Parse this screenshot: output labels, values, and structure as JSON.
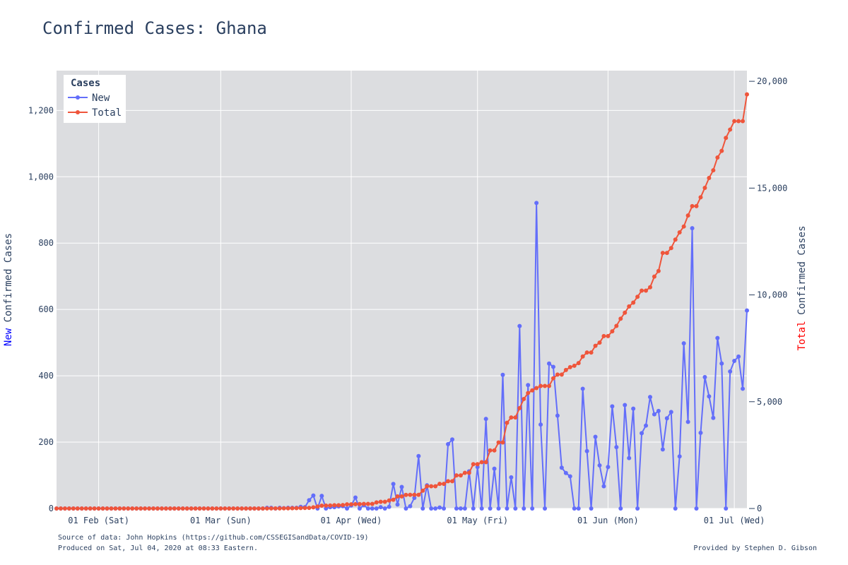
{
  "chart_data": {
    "type": "line",
    "title": "Confirmed Cases: Ghana",
    "x_axis": {
      "range": [
        "2020-01-22",
        "2020-07-04"
      ],
      "ticks": [
        {
          "date": "2020-02-01",
          "label": "01 Feb (Sat)"
        },
        {
          "date": "2020-03-01",
          "label": "01 Mar (Sun)"
        },
        {
          "date": "2020-04-01",
          "label": "01 Apr (Wed)"
        },
        {
          "date": "2020-05-01",
          "label": "01 May (Fri)"
        },
        {
          "date": "2020-06-01",
          "label": "01 Jun (Mon)"
        },
        {
          "date": "2020-07-01",
          "label": "01 Jul (Wed)"
        }
      ]
    },
    "y_left": {
      "label_colored": "New",
      "label_rest": " Confirmed Cases",
      "label_color": "#0000ff",
      "range": [
        0,
        1320
      ],
      "ticks": [
        {
          "value": 0,
          "label": "0"
        },
        {
          "value": 200,
          "label": "200"
        },
        {
          "value": 400,
          "label": "400"
        },
        {
          "value": 600,
          "label": "600"
        },
        {
          "value": 800,
          "label": "800"
        },
        {
          "value": 1000,
          "label": "1,000"
        },
        {
          "value": 1200,
          "label": "1,200"
        }
      ]
    },
    "y_right": {
      "label_colored": "Total",
      "label_rest": " Confirmed Cases",
      "label_color": "#ff0000",
      "range": [
        0,
        20500
      ],
      "ticks": [
        {
          "value": 0,
          "label": "0"
        },
        {
          "value": 5000,
          "label": "5,000"
        },
        {
          "value": 10000,
          "label": "10,000"
        },
        {
          "value": 15000,
          "label": "15,000"
        },
        {
          "value": 20000,
          "label": "20,000"
        }
      ]
    },
    "grid": true,
    "legend": {
      "title": "Cases",
      "placement": "top-left",
      "entries": [
        {
          "name": "New",
          "color": "#636efa"
        },
        {
          "name": "Total",
          "color": "#ef553b"
        }
      ]
    },
    "series": [
      {
        "name": "New",
        "axis": "left",
        "color": "#636efa",
        "points": [
          [
            "2020-03-12",
            2
          ],
          [
            "2020-03-13",
            2
          ],
          [
            "2020-03-14",
            0
          ],
          [
            "2020-03-15",
            2
          ],
          [
            "2020-03-16",
            1
          ],
          [
            "2020-03-17",
            2
          ],
          [
            "2020-03-18",
            2
          ],
          [
            "2020-03-19",
            2
          ],
          [
            "2020-03-20",
            5
          ],
          [
            "2020-03-21",
            4
          ],
          [
            "2020-03-22",
            25
          ],
          [
            "2020-03-23",
            39
          ],
          [
            "2020-03-24",
            0
          ],
          [
            "2020-03-25",
            38
          ],
          [
            "2020-03-26",
            0
          ],
          [
            "2020-03-27",
            4
          ],
          [
            "2020-03-28",
            4
          ],
          [
            "2020-03-29",
            6
          ],
          [
            "2020-03-30",
            7
          ],
          [
            "2020-03-31",
            0
          ],
          [
            "2020-04-01",
            9
          ],
          [
            "2020-04-02",
            33
          ],
          [
            "2020-04-03",
            0
          ],
          [
            "2020-04-04",
            10
          ],
          [
            "2020-04-05",
            0
          ],
          [
            "2020-04-06",
            0
          ],
          [
            "2020-04-07",
            0
          ],
          [
            "2020-04-08",
            4
          ],
          [
            "2020-04-09",
            0
          ],
          [
            "2020-04-10",
            5
          ],
          [
            "2020-04-11",
            74
          ],
          [
            "2020-04-12",
            12
          ],
          [
            "2020-04-13",
            65
          ],
          [
            "2020-04-14",
            0
          ],
          [
            "2020-04-15",
            7
          ],
          [
            "2020-04-16",
            32
          ],
          [
            "2020-04-17",
            158
          ],
          [
            "2020-04-18",
            0
          ],
          [
            "2020-04-19",
            70
          ],
          [
            "2020-04-20",
            0
          ],
          [
            "2020-04-21",
            0
          ],
          [
            "2020-04-22",
            3
          ],
          [
            "2020-04-23",
            0
          ],
          [
            "2020-04-24",
            194
          ],
          [
            "2020-04-25",
            208
          ],
          [
            "2020-04-26",
            0
          ],
          [
            "2020-04-27",
            0
          ],
          [
            "2020-04-28",
            0
          ],
          [
            "2020-04-29",
            112
          ],
          [
            "2020-04-30",
            0
          ],
          [
            "2020-05-01",
            125
          ],
          [
            "2020-05-02",
            0
          ],
          [
            "2020-05-03",
            270
          ],
          [
            "2020-05-04",
            0
          ],
          [
            "2020-05-05",
            120
          ],
          [
            "2020-05-06",
            0
          ],
          [
            "2020-05-07",
            403
          ],
          [
            "2020-05-08",
            0
          ],
          [
            "2020-05-09",
            94
          ],
          [
            "2020-05-10",
            0
          ],
          [
            "2020-05-11",
            550
          ],
          [
            "2020-05-12",
            0
          ],
          [
            "2020-05-13",
            372
          ],
          [
            "2020-05-14",
            0
          ],
          [
            "2020-05-15",
            921
          ],
          [
            "2020-05-16",
            253
          ],
          [
            "2020-05-17",
            0
          ],
          [
            "2020-05-18",
            437
          ],
          [
            "2020-05-19",
            427
          ],
          [
            "2020-05-20",
            280
          ],
          [
            "2020-05-21",
            123
          ],
          [
            "2020-05-22",
            107
          ],
          [
            "2020-05-23",
            97
          ],
          [
            "2020-05-24",
            0
          ],
          [
            "2020-05-25",
            0
          ],
          [
            "2020-05-26",
            361
          ],
          [
            "2020-05-27",
            173
          ],
          [
            "2020-05-28",
            0
          ],
          [
            "2020-05-29",
            216
          ],
          [
            "2020-05-30",
            130
          ],
          [
            "2020-05-31",
            67
          ],
          [
            "2020-06-01",
            125
          ],
          [
            "2020-06-02",
            308
          ],
          [
            "2020-06-03",
            185
          ],
          [
            "2020-06-04",
            0
          ],
          [
            "2020-06-05",
            312
          ],
          [
            "2020-06-06",
            152
          ],
          [
            "2020-06-07",
            301
          ],
          [
            "2020-06-08",
            0
          ],
          [
            "2020-06-09",
            227
          ],
          [
            "2020-06-10",
            250
          ],
          [
            "2020-06-11",
            336
          ],
          [
            "2020-06-12",
            284
          ],
          [
            "2020-06-13",
            294
          ],
          [
            "2020-06-14",
            178
          ],
          [
            "2020-06-15",
            272
          ],
          [
            "2020-06-16",
            291
          ],
          [
            "2020-06-17",
            0
          ],
          [
            "2020-06-18",
            157
          ],
          [
            "2020-06-19",
            498
          ],
          [
            "2020-06-20",
            261
          ],
          [
            "2020-06-21",
            845
          ],
          [
            "2020-06-22",
            0
          ],
          [
            "2020-06-23",
            228
          ],
          [
            "2020-06-24",
            396
          ],
          [
            "2020-06-25",
            338
          ],
          [
            "2020-06-26",
            273
          ],
          [
            "2020-06-27",
            514
          ],
          [
            "2020-06-28",
            437
          ],
          [
            "2020-06-29",
            0
          ],
          [
            "2020-06-30",
            413
          ],
          [
            "2020-07-01",
            445
          ],
          [
            "2020-07-02",
            458
          ],
          [
            "2020-07-03",
            361
          ],
          [
            "2020-07-04",
            597
          ]
        ]
      },
      {
        "name": "Total",
        "axis": "right",
        "color": "#ef553b",
        "points": [
          [
            "2020-03-12",
            2
          ],
          [
            "2020-03-13",
            4
          ],
          [
            "2020-03-14",
            4
          ],
          [
            "2020-03-15",
            6
          ],
          [
            "2020-03-16",
            7
          ],
          [
            "2020-03-17",
            9
          ],
          [
            "2020-03-18",
            11
          ],
          [
            "2020-03-19",
            16
          ],
          [
            "2020-03-20",
            19
          ],
          [
            "2020-03-21",
            23
          ],
          [
            "2020-03-22",
            27
          ],
          [
            "2020-03-23",
            52
          ],
          [
            "2020-03-24",
            91
          ],
          [
            "2020-03-25",
            132
          ],
          [
            "2020-03-26",
            137
          ],
          [
            "2020-03-27",
            141
          ],
          [
            "2020-03-28",
            152
          ],
          [
            "2020-03-29",
            152
          ],
          [
            "2020-03-30",
            161
          ],
          [
            "2020-03-31",
            195
          ],
          [
            "2020-04-01",
            195
          ],
          [
            "2020-04-02",
            204
          ],
          [
            "2020-04-03",
            205
          ],
          [
            "2020-04-04",
            214
          ],
          [
            "2020-04-05",
            214
          ],
          [
            "2020-04-06",
            214
          ],
          [
            "2020-04-07",
            287
          ],
          [
            "2020-04-08",
            313
          ],
          [
            "2020-04-09",
            313
          ],
          [
            "2020-04-10",
            378
          ],
          [
            "2020-04-11",
            408
          ],
          [
            "2020-04-12",
            566
          ],
          [
            "2020-04-13",
            566
          ],
          [
            "2020-04-14",
            636
          ],
          [
            "2020-04-15",
            641
          ],
          [
            "2020-04-16",
            641
          ],
          [
            "2020-04-17",
            641
          ],
          [
            "2020-04-18",
            834
          ],
          [
            "2020-04-19",
            1042
          ],
          [
            "2020-04-20",
            1042
          ],
          [
            "2020-04-21",
            1042
          ],
          [
            "2020-04-22",
            1154
          ],
          [
            "2020-04-23",
            1154
          ],
          [
            "2020-04-24",
            1279
          ],
          [
            "2020-04-25",
            1279
          ],
          [
            "2020-04-26",
            1550
          ],
          [
            "2020-04-27",
            1550
          ],
          [
            "2020-04-28",
            1671
          ],
          [
            "2020-04-29",
            1671
          ],
          [
            "2020-04-30",
            2074
          ],
          [
            "2020-05-01",
            2074
          ],
          [
            "2020-05-02",
            2169
          ],
          [
            "2020-05-03",
            2169
          ],
          [
            "2020-05-04",
            2719
          ],
          [
            "2020-05-05",
            2719
          ],
          [
            "2020-05-06",
            3091
          ],
          [
            "2020-05-07",
            3091
          ],
          [
            "2020-05-08",
            4012
          ],
          [
            "2020-05-09",
            4263
          ],
          [
            "2020-05-10",
            4263
          ],
          [
            "2020-05-11",
            4700
          ],
          [
            "2020-05-12",
            5127
          ],
          [
            "2020-05-13",
            5408
          ],
          [
            "2020-05-14",
            5530
          ],
          [
            "2020-05-15",
            5638
          ],
          [
            "2020-05-16",
            5735
          ],
          [
            "2020-05-17",
            5735
          ],
          [
            "2020-05-18",
            5735
          ],
          [
            "2020-05-19",
            6096
          ],
          [
            "2020-05-20",
            6269
          ],
          [
            "2020-05-21",
            6269
          ],
          [
            "2020-05-22",
            6486
          ],
          [
            "2020-05-23",
            6617
          ],
          [
            "2020-05-24",
            6683
          ],
          [
            "2020-05-25",
            6808
          ],
          [
            "2020-05-26",
            7117
          ],
          [
            "2020-05-27",
            7303
          ],
          [
            "2020-05-28",
            7303
          ],
          [
            "2020-05-29",
            7616
          ],
          [
            "2020-05-30",
            7768
          ],
          [
            "2020-05-31",
            8070
          ],
          [
            "2020-06-01",
            8070
          ],
          [
            "2020-06-02",
            8297
          ],
          [
            "2020-06-03",
            8548
          ],
          [
            "2020-06-04",
            8885
          ],
          [
            "2020-06-05",
            9168
          ],
          [
            "2020-06-06",
            9462
          ],
          [
            "2020-06-07",
            9638
          ],
          [
            "2020-06-08",
            9910
          ],
          [
            "2020-06-09",
            10201
          ],
          [
            "2020-06-10",
            10201
          ],
          [
            "2020-06-11",
            10358
          ],
          [
            "2020-06-12",
            10856
          ],
          [
            "2020-06-13",
            11118
          ],
          [
            "2020-06-14",
            11964
          ],
          [
            "2020-06-15",
            11964
          ],
          [
            "2020-06-16",
            12193
          ],
          [
            "2020-06-17",
            12590
          ],
          [
            "2020-06-18",
            12929
          ],
          [
            "2020-06-19",
            13203
          ],
          [
            "2020-06-20",
            13717
          ],
          [
            "2020-06-21",
            14154
          ],
          [
            "2020-06-22",
            14154
          ],
          [
            "2020-06-23",
            14568
          ],
          [
            "2020-06-24",
            15013
          ],
          [
            "2020-06-25",
            15473
          ],
          [
            "2020-06-26",
            15834
          ],
          [
            "2020-06-27",
            16431
          ],
          [
            "2020-06-28",
            16742
          ],
          [
            "2020-06-29",
            17351
          ],
          [
            "2020-06-30",
            17741
          ],
          [
            "2020-07-01",
            18134
          ],
          [
            "2020-07-02",
            18134
          ],
          [
            "2020-07-03",
            18134
          ],
          [
            "2020-07-04",
            19388
          ]
        ]
      }
    ]
  },
  "footer": {
    "source": "Source of data: John Hopkins (https://github.com/CSSEGISandData/COVID-19)",
    "produced": "Produced on Sat, Jul 04, 2020 at 08:33 Eastern.",
    "provided": "Provided by Stephen D. Gibson"
  }
}
